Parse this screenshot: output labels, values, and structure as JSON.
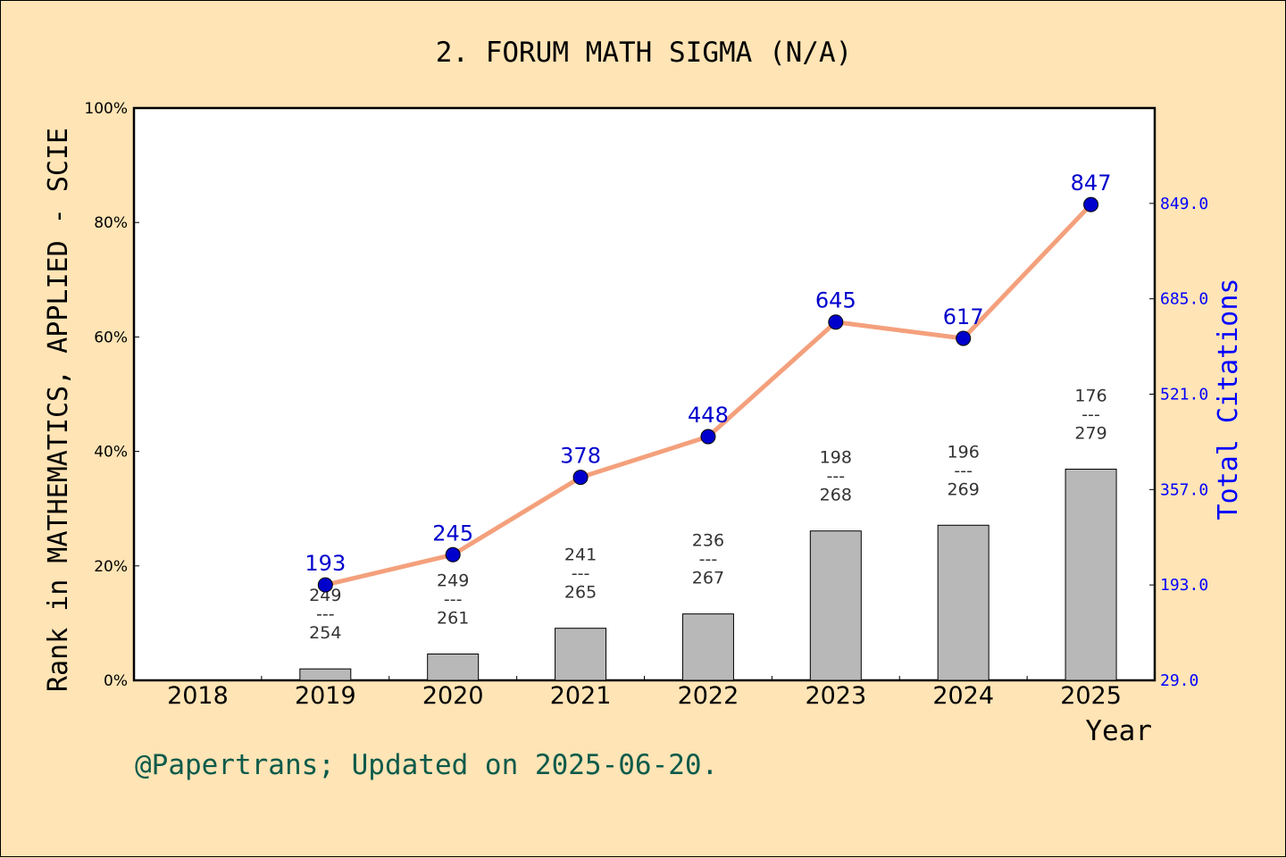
{
  "chart_data": {
    "type": "bar+line",
    "title": "2. FORUM MATH SIGMA (N/A)",
    "xlabel": "Year",
    "ylabel_left": "Rank in MATHEMATICS, APPLIED - SCIE",
    "ylabel_right": "Total Citations",
    "categories": [
      "2018",
      "2019",
      "2020",
      "2021",
      "2022",
      "2023",
      "2024",
      "2025"
    ],
    "left_axis": {
      "ylim": [
        0,
        100
      ],
      "ticks": [
        "0%",
        "20%",
        "40%",
        "60%",
        "80%",
        "100%"
      ]
    },
    "right_axis": {
      "ylim": [
        29,
        1013
      ],
      "ticks": [
        "29.0",
        "193.0",
        "357.0",
        "521.0",
        "685.0",
        "849.0"
      ]
    },
    "series": [
      {
        "kind": "bar",
        "values_percent": [
          null,
          2.0,
          4.6,
          9.1,
          11.6,
          26.1,
          27.1,
          36.9
        ],
        "labels": [
          null,
          {
            "rank": "249",
            "sep": "---",
            "total": "254"
          },
          {
            "rank": "249",
            "sep": "---",
            "total": "261"
          },
          {
            "rank": "241",
            "sep": "---",
            "total": "265"
          },
          {
            "rank": "236",
            "sep": "---",
            "total": "267"
          },
          {
            "rank": "198",
            "sep": "---",
            "total": "268"
          },
          {
            "rank": "196",
            "sep": "---",
            "total": "269"
          },
          {
            "rank": "176",
            "sep": "---",
            "total": "279"
          }
        ]
      },
      {
        "kind": "line",
        "values": [
          null,
          193,
          245,
          378,
          448,
          645,
          617,
          847
        ]
      }
    ],
    "colors": {
      "background": "#FFE4B5",
      "plot_bg": "#FFFFFF",
      "bar_fill": "#B8B8B8",
      "line": "#F4A07C",
      "marker": "#0000CD",
      "right_axis_text": "#0000FF",
      "footer": "#0B5A4A"
    }
  },
  "footer": "@Papertrans; Updated on 2025-06-20."
}
